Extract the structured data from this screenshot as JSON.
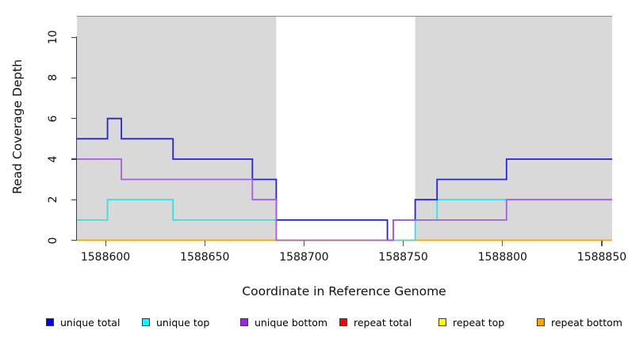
{
  "figure": {
    "panel_background": "#ffffff",
    "shaded_region_color": "#d9d9d9",
    "top_border_color": "#8a8a8a",
    "axis_color": "#3c4048"
  },
  "chart_data": {
    "type": "line",
    "subtype": "step-coverage-plot",
    "title": "",
    "xlabel": "Coordinate in Reference Genome",
    "ylabel": "Read Coverage Depth",
    "xlim": [
      1588585.6,
      1588855.2
    ],
    "ylim": [
      0,
      11.02
    ],
    "x_ticks": [
      1588600,
      1588650,
      1588700,
      1588750,
      1588800,
      1588850
    ],
    "y_ticks": [
      0,
      2,
      4,
      6,
      8,
      10
    ],
    "grid": false,
    "legend_position": "bottom",
    "shaded_regions": [
      {
        "x0": 1588585.6,
        "x1": 1588686
      },
      {
        "x0": 1588756,
        "x1": 1588855.2
      }
    ],
    "series": [
      {
        "name": "repeat-total",
        "label": "repeat total",
        "color": "#EE1111",
        "steps": [
          [
            1588586,
            0
          ]
        ]
      },
      {
        "name": "repeat-top",
        "label": "repeat top",
        "color": "#FFFF00",
        "steps": [
          [
            1588586,
            0
          ]
        ]
      },
      {
        "name": "repeat-bottom",
        "label": "repeat bottom",
        "color": "#FFA500",
        "steps": [
          [
            1588586,
            0
          ]
        ]
      },
      {
        "name": "unique-top",
        "label": "unique top",
        "color": "#30E2E8",
        "steps": [
          [
            1588586,
            1
          ],
          [
            1588601,
            2
          ],
          [
            1588634,
            1
          ],
          [
            1588742,
            0
          ],
          [
            1588756,
            1
          ],
          [
            1588767,
            2
          ]
        ]
      },
      {
        "name": "unique-total",
        "label": "unique total",
        "color": "#2424DC",
        "steps": [
          [
            1588586,
            5
          ],
          [
            1588601,
            6
          ],
          [
            1588608,
            5
          ],
          [
            1588634,
            4
          ],
          [
            1588674,
            3
          ],
          [
            1588686,
            1
          ],
          [
            1588742,
            0
          ],
          [
            1588745,
            1
          ],
          [
            1588756,
            2
          ],
          [
            1588767,
            3
          ],
          [
            1588802,
            4
          ]
        ]
      },
      {
        "name": "unique-bottom",
        "label": "unique bottom",
        "color": "#A55CE0",
        "steps": [
          [
            1588586,
            4
          ],
          [
            1588608,
            3
          ],
          [
            1588674,
            2
          ],
          [
            1588686,
            0
          ],
          [
            1588745,
            1
          ],
          [
            1588802,
            2
          ]
        ]
      }
    ]
  },
  "legend": {
    "items": [
      {
        "label": "unique total",
        "color": "#0000EE"
      },
      {
        "label": "unique top",
        "color": "#00FFFF"
      },
      {
        "label": "unique bottom",
        "color": "#A020F0"
      },
      {
        "label": "repeat total",
        "color": "#FF0000"
      },
      {
        "label": "repeat top",
        "color": "#FFFF00"
      },
      {
        "label": "repeat bottom",
        "color": "#FFA500"
      }
    ]
  }
}
